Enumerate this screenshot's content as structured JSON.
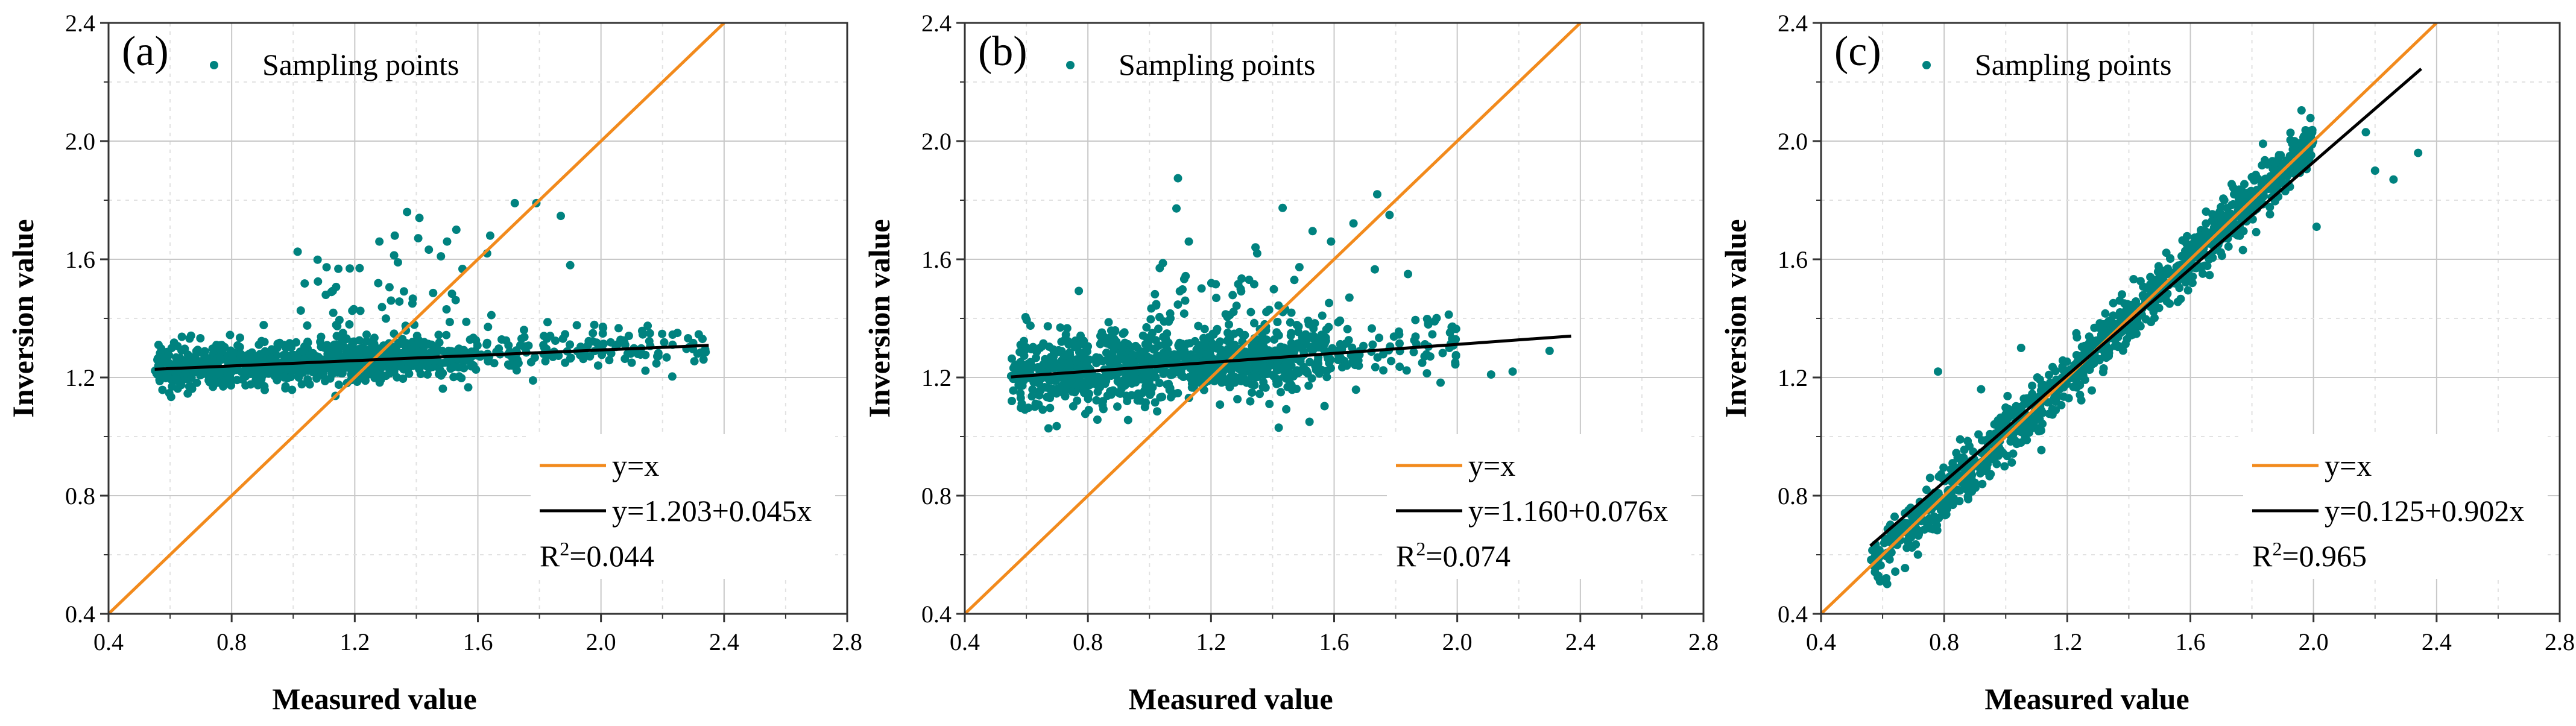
{
  "colors": {
    "points": "#00827F",
    "identity_line": "#F28A1C",
    "fit_line": "#000000"
  },
  "chart_data": [
    {
      "type": "scatter",
      "panel_label": "(a)",
      "xlabel": "Measured value",
      "ylabel": "Inversion value",
      "xlim": [
        0.4,
        2.8
      ],
      "ylim": [
        0.4,
        2.4
      ],
      "xticks": [
        "0.4",
        "0.8",
        "1.2",
        "1.6",
        "2.0",
        "2.4",
        "2.8"
      ],
      "yticks": [
        "0.4",
        "0.8",
        "1.2",
        "1.6",
        "2.0",
        "2.4"
      ],
      "legend_points_label": "Sampling points",
      "identity_label": "y=x",
      "fit_label": "y=1.203+0.045x",
      "r2_label": "R",
      "r2_sup": "2",
      "r2_value": "=0.044",
      "fit": {
        "intercept": 1.203,
        "slope": 0.045,
        "x_range": [
          0.55,
          2.35
        ]
      },
      "cloud": {
        "x_range": [
          0.55,
          2.35
        ],
        "noise": 0.035,
        "outlier_spread": 0.18
      },
      "outliers": [
        [
          1.37,
          1.76
        ],
        [
          1.41,
          1.74
        ],
        [
          1.72,
          1.79
        ],
        [
          1.79,
          1.79
        ],
        [
          1.53,
          1.7
        ],
        [
          1.33,
          1.68
        ],
        [
          1.5,
          1.66
        ],
        [
          1.28,
          1.66
        ],
        [
          1.64,
          1.68
        ],
        [
          1.48,
          1.61
        ],
        [
          1.9,
          1.58
        ],
        [
          1.63,
          1.62
        ]
      ]
    },
    {
      "type": "scatter",
      "panel_label": "(b)",
      "xlabel": "Measured value",
      "ylabel": "Inversion value",
      "xlim": [
        0.4,
        2.8
      ],
      "ylim": [
        0.4,
        2.4
      ],
      "xticks": [
        "0.4",
        "0.8",
        "1.2",
        "1.6",
        "2.0",
        "2.4",
        "2.8"
      ],
      "yticks": [
        "0.4",
        "0.8",
        "1.2",
        "1.6",
        "2.0",
        "2.4"
      ],
      "legend_points_label": "Sampling points",
      "identity_label": "y=x",
      "fit_label": "y=1.160+0.076x",
      "r2_label": "R",
      "r2_sup": "2",
      "r2_value": "=0.074",
      "fit": {
        "intercept": 1.16,
        "slope": 0.076,
        "x_range": [
          0.55,
          2.37
        ]
      },
      "cloud": {
        "x_range": [
          0.55,
          2.0
        ],
        "noise": 0.06,
        "outlier_spread": 0.2
      },
      "outliers": [
        [
          1.74,
          1.82
        ],
        [
          1.78,
          1.75
        ],
        [
          1.59,
          1.66
        ],
        [
          1.35,
          1.62
        ],
        [
          1.84,
          1.55
        ],
        [
          2.11,
          1.21
        ],
        [
          2.3,
          1.29
        ],
        [
          1.42,
          1.03
        ],
        [
          1.52,
          1.05
        ],
        [
          2.18,
          1.22
        ]
      ]
    },
    {
      "type": "scatter",
      "panel_label": "(c)",
      "xlabel": "Measured value",
      "ylabel": "Inversion value",
      "xlim": [
        0.4,
        2.8
      ],
      "ylim": [
        0.4,
        2.4
      ],
      "xticks": [
        "0.4",
        "0.8",
        "1.2",
        "1.6",
        "2.0",
        "2.4",
        "2.8"
      ],
      "yticks": [
        "0.4",
        "0.8",
        "1.2",
        "1.6",
        "2.0",
        "2.4"
      ],
      "legend_points_label": "Sampling points",
      "identity_label": "y=x",
      "fit_label": "y=0.125+0.902x",
      "r2_label": "R",
      "r2_sup": "2",
      "r2_value": "=0.965",
      "fit": {
        "intercept": 0.125,
        "slope": 0.902,
        "x_range": [
          0.56,
          2.35
        ]
      },
      "cloud": {
        "x_range": [
          0.56,
          2.0
        ],
        "noise": 0.045,
        "outlier_spread": 0.12
      },
      "outliers": [
        [
          2.17,
          2.03
        ],
        [
          2.2,
          1.9
        ],
        [
          2.26,
          1.87
        ],
        [
          2.34,
          1.96
        ],
        [
          2.01,
          1.71
        ],
        [
          0.78,
          1.22
        ],
        [
          0.92,
          1.16
        ],
        [
          1.05,
          1.3
        ]
      ]
    }
  ]
}
